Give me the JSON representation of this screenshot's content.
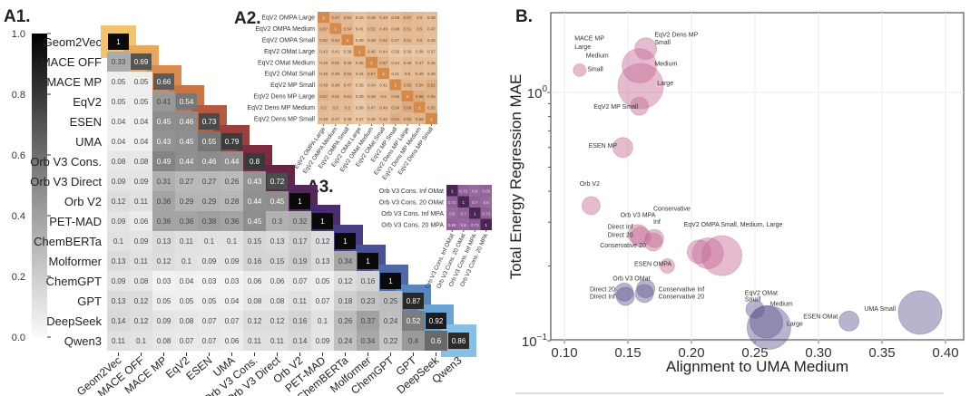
{
  "panels": {
    "a1": "A1.",
    "a2": "A2.",
    "a3": "A3.",
    "b": "B."
  },
  "colorbar": {
    "ticks": [
      "1.0",
      "0.8",
      "0.6",
      "0.4",
      "0.2",
      "0.0"
    ],
    "tick_values": [
      1.0,
      0.8,
      0.6,
      0.4,
      0.2,
      0.0
    ]
  },
  "diag_colors": [
    "#f2c46d",
    "#e8a75a",
    "#d98c4e",
    "#c97445",
    "#b55a3f",
    "#9a3f3c",
    "#7d2b3f",
    "#652645",
    "#56285a",
    "#4a2d6e",
    "#4a3c85",
    "#4a5197",
    "#4f69a8",
    "#5a86c0",
    "#6aa4d5",
    "#86c0e6"
  ],
  "chart_data": [
    {
      "id": "A1",
      "type": "heatmap",
      "title": "A1.",
      "labels": [
        "Geom2Vec",
        "MACE OFF",
        "MACE MP",
        "EqV2",
        "ESEN",
        "UMA",
        "Orb V3 Cons.",
        "Orb V3 Direct",
        "Orb V2",
        "PET-MAD",
        "ChemBERTa",
        "Molformer",
        "ChemGPT",
        "GPT",
        "DeepSeek",
        "Qwen3"
      ],
      "values": [
        [
          1
        ],
        [
          0.33,
          0.69
        ],
        [
          0.05,
          0.05,
          0.66
        ],
        [
          0.05,
          0.05,
          0.41,
          0.54
        ],
        [
          0.04,
          0.04,
          0.45,
          0.46,
          0.73
        ],
        [
          0.04,
          0.04,
          0.43,
          0.45,
          0.55,
          0.79
        ],
        [
          0.08,
          0.08,
          0.49,
          0.44,
          0.46,
          0.44,
          0.8
        ],
        [
          0.09,
          0.09,
          0.31,
          0.27,
          0.27,
          0.26,
          0.43,
          0.72
        ],
        [
          0.12,
          0.11,
          0.36,
          0.29,
          0.29,
          0.28,
          0.44,
          0.45,
          1
        ],
        [
          0.09,
          0.06,
          0.36,
          0.36,
          0.38,
          0.36,
          0.45,
          0.3,
          0.32,
          1
        ],
        [
          0.1,
          0.09,
          0.13,
          0.11,
          0.1,
          0.1,
          0.15,
          0.13,
          0.17,
          0.12,
          1
        ],
        [
          0.13,
          0.11,
          0.12,
          0.1,
          0.09,
          0.09,
          0.16,
          0.15,
          0.19,
          0.13,
          0.34,
          1
        ],
        [
          0.09,
          0.08,
          0.03,
          0.04,
          0.03,
          0.03,
          0.06,
          0.06,
          0.07,
          0.05,
          0.12,
          0.16,
          1
        ],
        [
          0.13,
          0.12,
          0.05,
          0.05,
          0.05,
          0.04,
          0.08,
          0.08,
          0.11,
          0.07,
          0.18,
          0.23,
          0.25,
          0.87
        ],
        [
          0.14,
          0.12,
          0.09,
          0.08,
          0.07,
          0.07,
          0.12,
          0.12,
          0.16,
          0.1,
          0.26,
          0.37,
          0.24,
          0.52,
          0.92
        ],
        [
          0.11,
          0.1,
          0.08,
          0.07,
          0.07,
          0.06,
          0.11,
          0.11,
          0.14,
          0.09,
          0.24,
          0.34,
          0.22,
          0.4,
          0.6,
          0.86
        ]
      ],
      "colorscale": "greys",
      "vmin": 0,
      "vmax": 1
    },
    {
      "id": "A2",
      "type": "heatmap",
      "title": "A2.",
      "labels": [
        "EqV2 OMPA Large",
        "EqV2 OMPA Medium",
        "EqV2 OMPA Small",
        "EqV2 OMat Large",
        "EqV2 OMat Medium",
        "EqV2 OMat Small",
        "EqV2 MP Small",
        "EqV2 Dens MP Large",
        "EqV2 Dens MP Medium",
        "EqV2 Dens MP Small"
      ],
      "values": [
        [
          1,
          0.57,
          0.52,
          0.43,
          0.49,
          0.49,
          0.49,
          0.57,
          0.5,
          0.48
        ],
        [
          0.57,
          1,
          0.54,
          0.41,
          0.51,
          0.49,
          0.48,
          0.51,
          0.5,
          0.47
        ],
        [
          0.52,
          0.54,
          1,
          0.39,
          0.48,
          0.52,
          0.47,
          0.51,
          0.5,
          0.45
        ],
        [
          0.43,
          0.41,
          0.39,
          1,
          0.46,
          0.44,
          0.36,
          0.39,
          0.38,
          0.37
        ],
        [
          0.49,
          0.51,
          0.48,
          0.46,
          1,
          0.57,
          0.44,
          0.48,
          0.47,
          0.45
        ],
        [
          0.49,
          0.49,
          0.52,
          0.44,
          0.57,
          1,
          0.41,
          0.5,
          0.49,
          0.46
        ],
        [
          0.49,
          0.48,
          0.47,
          0.36,
          0.44,
          0.41,
          1,
          0.56,
          0.54,
          0.61
        ],
        [
          0.57,
          0.51,
          0.51,
          0.39,
          0.48,
          0.5,
          0.56,
          1,
          0.66,
          0.55
        ],
        [
          0.5,
          0.5,
          0.5,
          0.38,
          0.47,
          0.49,
          0.54,
          0.66,
          1,
          0.55
        ],
        [
          0.48,
          0.47,
          0.45,
          0.37,
          0.45,
          0.46,
          0.61,
          0.55,
          0.55,
          1
        ]
      ],
      "colorscale": "tan",
      "vmin": 0,
      "vmax": 1
    },
    {
      "id": "A3",
      "type": "heatmap",
      "title": "A3.",
      "labels": [
        "Orb V3 Cons. Inf OMat",
        "Orb V3 Cons. 20 OMat",
        "Orb V3 Cons. Inf MPA",
        "Orb V3 Cons. 20 MPA"
      ],
      "values": [
        [
          1,
          0.72,
          0.6,
          0.69
        ],
        [
          0.72,
          1,
          0.7,
          0.6
        ],
        [
          0.6,
          0.7,
          1,
          0.73
        ],
        [
          0.69,
          0.6,
          0.73,
          1
        ]
      ],
      "colorscale": "purple",
      "vmin": 0,
      "vmax": 1
    },
    {
      "id": "B",
      "type": "scatter",
      "title": "B.",
      "xlabel": "Alignment to UMA Medium",
      "ylabel": "Total Energy Regression MAE",
      "xlim": [
        0.095,
        0.42
      ],
      "ylim": [
        0.1,
        1.9
      ],
      "yscale": "log",
      "xticks": [
        "0.10",
        "0.15",
        "0.20",
        "0.25",
        "0.30",
        "0.35",
        "0.40"
      ],
      "xtick_values": [
        0.1,
        0.15,
        0.2,
        0.25,
        0.3,
        0.35,
        0.4
      ],
      "yticks": [
        {
          "value": 1,
          "base": "10",
          "exp": "0"
        },
        {
          "value": 0.1,
          "base": "10",
          "exp": "−1"
        }
      ],
      "grid": true,
      "group_colors": {
        "mp": "#c46a92",
        "omat": "#5f5890"
      },
      "points": [
        {
          "x": 0.112,
          "y": 1.23,
          "size": 7,
          "group": "mp"
        },
        {
          "x": 0.164,
          "y": 1.5,
          "size": 12,
          "group": "mp"
        },
        {
          "x": 0.159,
          "y": 1.28,
          "size": 19,
          "group": "mp"
        },
        {
          "x": 0.16,
          "y": 1.06,
          "size": 25,
          "group": "mp"
        },
        {
          "x": 0.159,
          "y": 0.88,
          "size": 10,
          "group": "mp"
        },
        {
          "x": 0.146,
          "y": 0.6,
          "size": 11,
          "group": "mp"
        },
        {
          "x": 0.121,
          "y": 0.35,
          "size": 10,
          "group": "mp"
        },
        {
          "x": 0.158,
          "y": 0.268,
          "size": 11,
          "group": "mp"
        },
        {
          "x": 0.16,
          "y": 0.262,
          "size": 11,
          "group": "mp"
        },
        {
          "x": 0.171,
          "y": 0.258,
          "size": 10,
          "group": "mp"
        },
        {
          "x": 0.17,
          "y": 0.25,
          "size": 10,
          "group": "mp"
        },
        {
          "x": 0.181,
          "y": 0.2,
          "size": 8,
          "group": "mp"
        },
        {
          "x": 0.206,
          "y": 0.228,
          "size": 13,
          "group": "mp"
        },
        {
          "x": 0.213,
          "y": 0.225,
          "size": 17,
          "group": "mp"
        },
        {
          "x": 0.224,
          "y": 0.22,
          "size": 22,
          "group": "mp"
        },
        {
          "x": 0.147,
          "y": 0.157,
          "size": 10,
          "group": "omat"
        },
        {
          "x": 0.148,
          "y": 0.151,
          "size": 10,
          "group": "omat"
        },
        {
          "x": 0.164,
          "y": 0.162,
          "size": 10,
          "group": "omat"
        },
        {
          "x": 0.163,
          "y": 0.155,
          "size": 10,
          "group": "omat"
        },
        {
          "x": 0.25,
          "y": 0.134,
          "size": 10,
          "group": "omat"
        },
        {
          "x": 0.259,
          "y": 0.119,
          "size": 18,
          "group": "omat"
        },
        {
          "x": 0.261,
          "y": 0.113,
          "size": 24,
          "group": "omat"
        },
        {
          "x": 0.324,
          "y": 0.12,
          "size": 11,
          "group": "omat"
        },
        {
          "x": 0.38,
          "y": 0.13,
          "size": 24,
          "group": "omat"
        }
      ],
      "annotations": [
        {
          "text": "MACE MP",
          "x": 0.108,
          "y": 1.62
        },
        {
          "text": "Large",
          "x": 0.108,
          "y": 1.5
        },
        {
          "text": "Medium",
          "x": 0.117,
          "y": 1.38
        },
        {
          "text": "Small",
          "x": 0.118,
          "y": 1.22
        },
        {
          "text": "EqV2 Dens MP",
          "x": 0.171,
          "y": 1.68
        },
        {
          "text": "Small",
          "x": 0.171,
          "y": 1.56
        },
        {
          "text": "Medium",
          "x": 0.171,
          "y": 1.28
        },
        {
          "text": "Large",
          "x": 0.173,
          "y": 1.07
        },
        {
          "text": "EqV2 MP Small",
          "x": 0.123,
          "y": 0.86
        },
        {
          "text": "ESEN MP",
          "x": 0.119,
          "y": 0.6
        },
        {
          "text": "Orb V2",
          "x": 0.112,
          "y": 0.42
        },
        {
          "text": "Orb V3 MPA",
          "x": 0.144,
          "y": 0.315
        },
        {
          "text": "Conservative",
          "x": 0.17,
          "y": 0.322
        },
        {
          "text": "Inf",
          "x": 0.17,
          "y": 0.298
        },
        {
          "text": "Direct Inf",
          "x": 0.134,
          "y": 0.282
        },
        {
          "text": "Direct 20",
          "x": 0.134,
          "y": 0.262
        },
        {
          "text": "Conservative 20",
          "x": 0.128,
          "y": 0.238
        },
        {
          "text": "EqV2 OMPA Small, Medium, Large",
          "x": 0.194,
          "y": 0.288
        },
        {
          "text": "ESEN OMPA",
          "x": 0.155,
          "y": 0.2
        },
        {
          "text": "Orb V3 OMat",
          "x": 0.138,
          "y": 0.175
        },
        {
          "text": "Direct 20",
          "x": 0.12,
          "y": 0.158
        },
        {
          "text": "Direct Inf",
          "x": 0.12,
          "y": 0.148
        },
        {
          "text": "Conservative Inf",
          "x": 0.174,
          "y": 0.158
        },
        {
          "text": "Conservative 20",
          "x": 0.174,
          "y": 0.148
        },
        {
          "text": "EqV2 OMat",
          "x": 0.242,
          "y": 0.153
        },
        {
          "text": "Small",
          "x": 0.242,
          "y": 0.144
        },
        {
          "text": "Medium",
          "x": 0.262,
          "y": 0.138
        },
        {
          "text": "Large",
          "x": 0.275,
          "y": 0.115
        },
        {
          "text": "ESEN OMat",
          "x": 0.288,
          "y": 0.123
        },
        {
          "text": "UMA Small",
          "x": 0.336,
          "y": 0.132
        }
      ]
    }
  ]
}
